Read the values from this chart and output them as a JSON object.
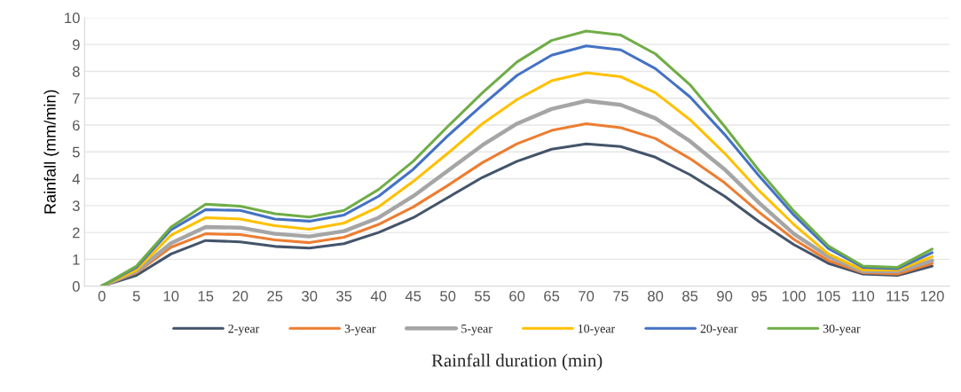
{
  "chart_data": {
    "type": "line",
    "xlabel": "Rainfall duration (min)",
    "ylabel": "Rainfall (mm/min)",
    "categories": [
      "0",
      "5",
      "10",
      "15",
      "20",
      "25",
      "30",
      "35",
      "40",
      "45",
      "50",
      "55",
      "60",
      "65",
      "70",
      "75",
      "80",
      "85",
      "90",
      "95",
      "100",
      "105",
      "110",
      "115",
      "120"
    ],
    "ylim": [
      0,
      10
    ],
    "yticks": [
      0,
      1,
      2,
      3,
      4,
      5,
      6,
      7,
      8,
      9,
      10
    ],
    "grid": "y",
    "legend": "bottom",
    "marker": "none",
    "line_style": "solid",
    "series": [
      {
        "name": "2-year",
        "color": "#44546a",
        "values": [
          0,
          0.4,
          1.2,
          1.7,
          1.65,
          1.48,
          1.42,
          1.58,
          2.0,
          2.55,
          3.3,
          4.05,
          4.65,
          5.1,
          5.3,
          5.2,
          4.8,
          4.15,
          3.35,
          2.4,
          1.55,
          0.85,
          0.45,
          0.4,
          0.75
        ]
      },
      {
        "name": "3-year",
        "color": "#ed7d31",
        "values": [
          0,
          0.5,
          1.45,
          1.95,
          1.92,
          1.72,
          1.62,
          1.82,
          2.3,
          2.95,
          3.75,
          4.6,
          5.3,
          5.8,
          6.05,
          5.9,
          5.5,
          4.75,
          3.85,
          2.75,
          1.75,
          0.95,
          0.5,
          0.45,
          0.85
        ]
      },
      {
        "name": "5-year",
        "color": "#a5a5a5",
        "values": [
          0,
          0.55,
          1.6,
          2.2,
          2.18,
          1.95,
          1.85,
          2.05,
          2.55,
          3.35,
          4.3,
          5.25,
          6.05,
          6.6,
          6.9,
          6.75,
          6.25,
          5.4,
          4.35,
          3.1,
          1.95,
          1.1,
          0.55,
          0.55,
          0.95
        ]
      },
      {
        "name": "10-year",
        "color": "#ffc000",
        "values": [
          0,
          0.6,
          1.9,
          2.55,
          2.5,
          2.25,
          2.12,
          2.35,
          2.95,
          3.9,
          4.95,
          6.05,
          6.95,
          7.65,
          7.95,
          7.8,
          7.2,
          6.2,
          4.95,
          3.55,
          2.3,
          1.2,
          0.6,
          0.6,
          1.1
        ]
      },
      {
        "name": "20-year",
        "color": "#4472c4",
        "values": [
          0,
          0.7,
          2.1,
          2.85,
          2.82,
          2.5,
          2.42,
          2.65,
          3.35,
          4.35,
          5.6,
          6.75,
          7.85,
          8.6,
          8.95,
          8.8,
          8.1,
          7.05,
          5.65,
          4.1,
          2.65,
          1.4,
          0.7,
          0.65,
          1.25
        ]
      },
      {
        "name": "30-year",
        "color": "#70ad47",
        "values": [
          0,
          0.75,
          2.2,
          3.05,
          2.98,
          2.7,
          2.57,
          2.82,
          3.6,
          4.65,
          5.95,
          7.2,
          8.35,
          9.15,
          9.5,
          9.35,
          8.65,
          7.5,
          5.95,
          4.3,
          2.8,
          1.5,
          0.75,
          0.7,
          1.38
        ]
      }
    ]
  }
}
